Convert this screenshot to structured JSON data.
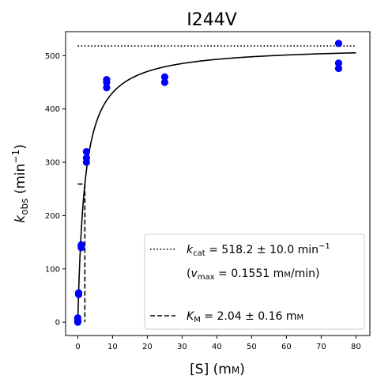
{
  "chart_data": {
    "type": "scatter",
    "title": "I244V",
    "xlabel": {
      "main": "[S] (m",
      "unit_small": "M",
      "close": ")"
    },
    "ylabel": {
      "k": "k",
      "sub": "obs",
      "mid": " (min",
      "sup": "−1",
      "close": ")"
    },
    "xlim": [
      -3.5,
      84
    ],
    "ylim": [
      -25,
      545
    ],
    "xticks": [
      0,
      10,
      20,
      30,
      40,
      50,
      60,
      70,
      80
    ],
    "yticks": [
      0,
      100,
      200,
      300,
      400,
      500
    ],
    "grid": false,
    "legend_position": "lower-right",
    "marker_color": "#0000ff",
    "line_color": "#000000",
    "series": [
      {
        "name": "data",
        "x": [
          0,
          0,
          0,
          0.25,
          0.25,
          0.25,
          1.0,
          1.0,
          1.0,
          2.5,
          2.5,
          2.5,
          8.3,
          8.3,
          8.3,
          25,
          25,
          75,
          75,
          75
        ],
        "y": [
          0,
          3,
          8,
          52,
          54,
          55,
          140,
          143,
          145,
          300,
          308,
          320,
          440,
          450,
          455,
          450,
          460,
          476,
          486,
          523
        ]
      }
    ],
    "fit": {
      "type": "michaelis-menten",
      "kcat": 518.2,
      "km": 2.04,
      "x_range": [
        0,
        80
      ]
    },
    "kcat_line": {
      "y": 518.2,
      "x_range": [
        0,
        80
      ]
    },
    "km_line": {
      "x": 2.04,
      "y": 259.1,
      "x_start": 0
    },
    "legend": {
      "kcat": {
        "k": "k",
        "sub": "cat",
        "text": " = 518.2 ± 10.0 min",
        "sup": "−1"
      },
      "vmax": {
        "open": "(",
        "v": "v",
        "sub": "max",
        "text": " = 0.1551 m",
        "unit_small": "M",
        "close": "/min)"
      },
      "km": {
        "k": "K",
        "sub": "M",
        "text": " = 2.04 ± 0.16 m",
        "unit_small": "M"
      }
    }
  }
}
